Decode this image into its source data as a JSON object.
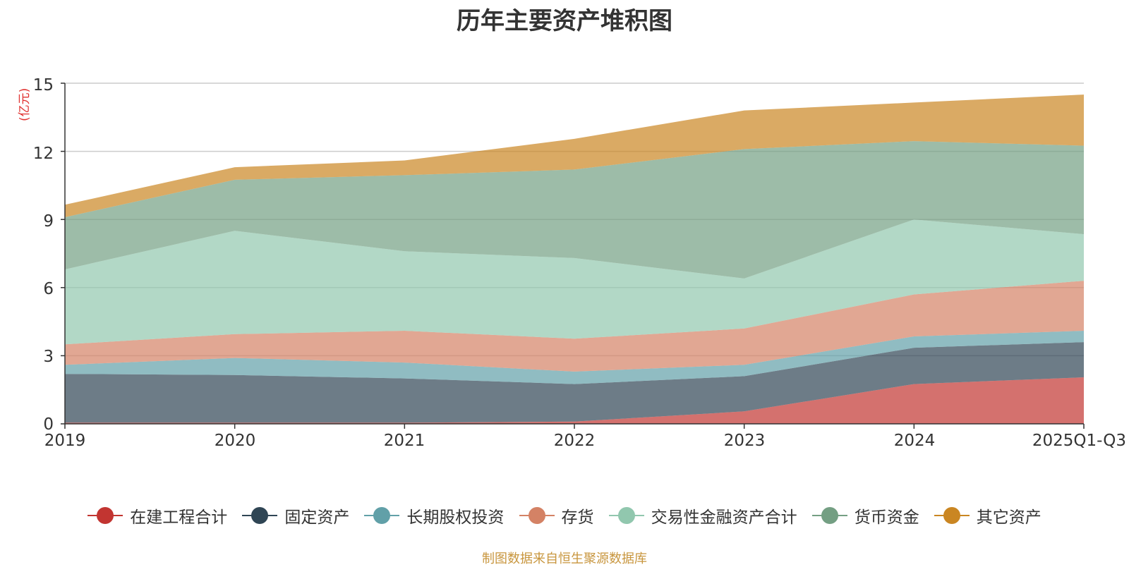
{
  "chart_data": {
    "type": "area",
    "stacked": true,
    "title": "历年主要资产堆积图",
    "ylabel": "(亿元)",
    "xlabel": "",
    "categories": [
      "2019",
      "2020",
      "2021",
      "2022",
      "2023",
      "2024",
      "2025Q1-Q3"
    ],
    "y_ticks": [
      "0",
      "3",
      "6",
      "9",
      "12",
      "15"
    ],
    "ylim": [
      0,
      15
    ],
    "grid": true,
    "legend_position": "bottom",
    "series": [
      {
        "name": "在建工程合计",
        "values": [
          0.05,
          0.05,
          0.05,
          0.1,
          0.55,
          1.75,
          2.05
        ],
        "color": "#c23531"
      },
      {
        "name": "固定资产",
        "values": [
          2.15,
          2.1,
          1.95,
          1.65,
          1.55,
          1.6,
          1.55
        ],
        "color": "#2f4554"
      },
      {
        "name": "长期股权投资",
        "values": [
          0.4,
          0.75,
          0.7,
          0.55,
          0.5,
          0.5,
          0.5
        ],
        "color": "#61a0a8"
      },
      {
        "name": "存货",
        "values": [
          0.9,
          1.05,
          1.4,
          1.45,
          1.6,
          1.85,
          2.2
        ],
        "color": "#d48265"
      },
      {
        "name": "交易性金融资产合计",
        "values": [
          3.3,
          4.55,
          3.5,
          3.55,
          2.2,
          3.3,
          2.05
        ],
        "color": "#91c7ae"
      },
      {
        "name": "货币资金",
        "values": [
          2.3,
          2.25,
          3.35,
          3.9,
          5.7,
          3.45,
          3.9
        ],
        "color": "#749f83"
      },
      {
        "name": "其它资产",
        "values": [
          0.55,
          0.55,
          0.65,
          1.35,
          1.7,
          1.7,
          2.25
        ],
        "color": "#ca8622"
      }
    ]
  },
  "footer": "制图数据来自恒生聚源数据库"
}
